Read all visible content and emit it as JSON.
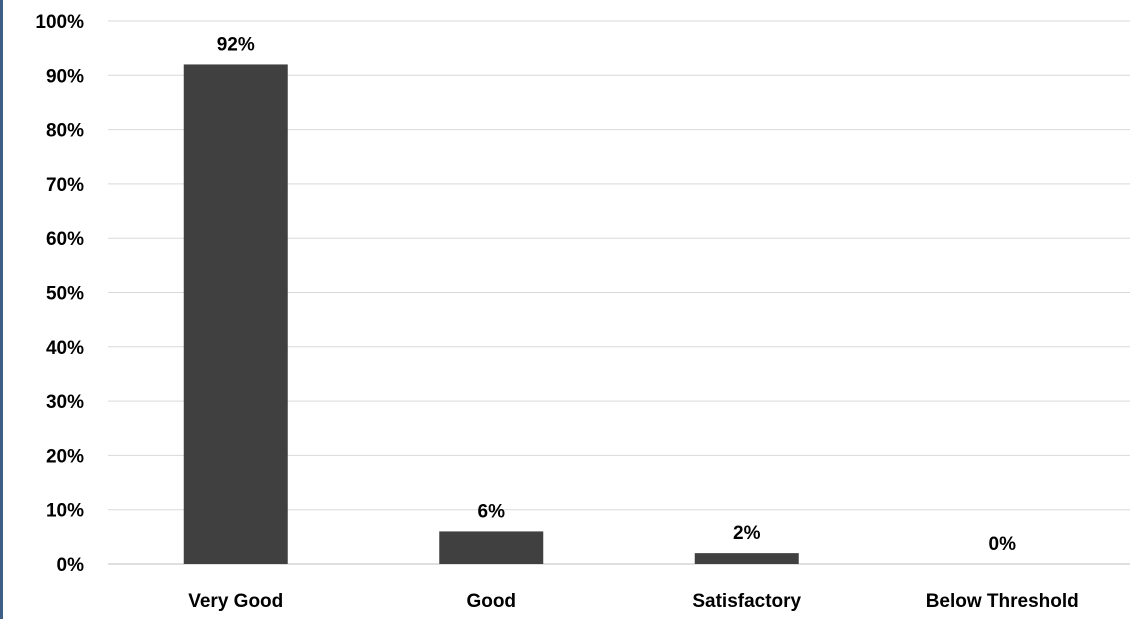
{
  "chart_data": {
    "type": "bar",
    "title": "",
    "xlabel": "",
    "ylabel": "",
    "categories": [
      "Very Good",
      "Good",
      "Satisfactory",
      "Below Threshold"
    ],
    "values": [
      92,
      6,
      2,
      0
    ],
    "data_labels": [
      "92%",
      "6%",
      "2%",
      "0%"
    ],
    "ylim": [
      0,
      100
    ],
    "y_ticks": [
      0,
      10,
      20,
      30,
      40,
      50,
      60,
      70,
      80,
      90,
      100
    ],
    "y_tick_labels": [
      "0%",
      "10%",
      "20%",
      "30%",
      "40%",
      "50%",
      "60%",
      "70%",
      "80%",
      "90%",
      "100%"
    ],
    "grid": true,
    "legend": "none",
    "colors": {
      "bar": "#404040",
      "grid": "#d9d9d9",
      "axis": "#bfbfbf",
      "left_edge": "#3e5e86"
    }
  }
}
